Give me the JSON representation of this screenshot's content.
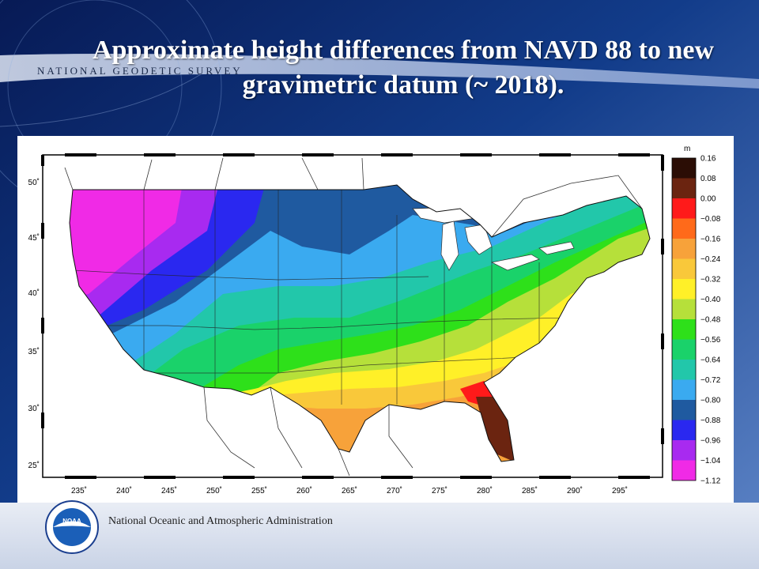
{
  "header": {
    "title_line1": "Approximate  height differences from NAVD 88 to new",
    "title_line2": "gravimetric  datum (~ 2018).",
    "org_banner": "NATIONAL GEODETIC SURVEY"
  },
  "map": {
    "lon_ticks": [
      "235˚",
      "240˚",
      "245˚",
      "250˚",
      "255˚",
      "260˚",
      "265˚",
      "270˚",
      "275˚",
      "280˚",
      "285˚",
      "290˚",
      "295˚"
    ],
    "lat_ticks": [
      "50˚",
      "45˚",
      "40˚",
      "35˚",
      "30˚",
      "25˚"
    ],
    "legend": {
      "unit": "m",
      "labels": [
        "0.16",
        "0.08",
        "0.00",
        "−0.08",
        "−0.16",
        "−0.24",
        "−0.32",
        "−0.40",
        "−0.48",
        "−0.56",
        "−0.64",
        "−0.72",
        "−0.80",
        "−0.88",
        "−0.96",
        "−1.04",
        "−1.12"
      ],
      "colors": [
        "#2b0d05",
        "#6b2410",
        "#ff1a1a",
        "#ff6a1a",
        "#f7a23a",
        "#f9c83a",
        "#fff028",
        "#b6e03a",
        "#2ee01a",
        "#1ad26a",
        "#22c7aa",
        "#3aaaf0",
        "#1f5aa0",
        "#2a28f0",
        "#a82af0",
        "#f02ae6"
      ]
    }
  },
  "footer": {
    "agency": "National Oceanic and Atmospheric Administration",
    "logo_text": "NOAA"
  }
}
